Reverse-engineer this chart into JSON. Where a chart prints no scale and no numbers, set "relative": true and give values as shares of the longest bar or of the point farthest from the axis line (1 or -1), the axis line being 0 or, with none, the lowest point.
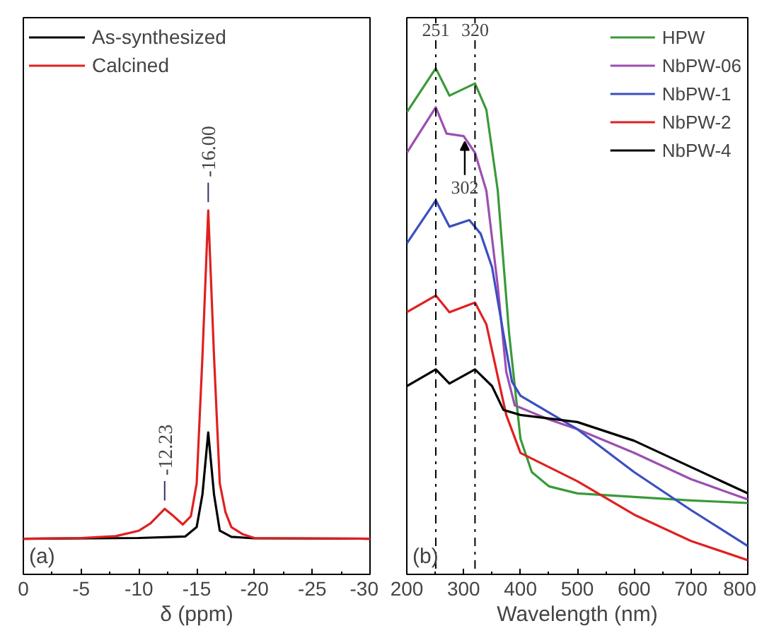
{
  "chart_data": [
    {
      "type": "line",
      "xlabel": "δ (ppm)",
      "xlim": [
        0,
        -30
      ],
      "xticks": [
        0,
        -5,
        -10,
        -15,
        -20,
        -25,
        -30
      ],
      "relative": true,
      "tick_labels": "x",
      "legend": "top left",
      "grid": false,
      "annotations": [
        {
          "text": "-16.00",
          "x": -16.0,
          "y": 1.0
        },
        {
          "text": "-12.23",
          "x": -12.23,
          "y": 0.18
        },
        "(a)"
      ],
      "series": [
        {
          "name": "As-synthesized",
          "color": "#000000",
          "x": [
            0,
            -10,
            -14,
            -15,
            -15.5,
            -16,
            -16.5,
            -17,
            -18,
            -20,
            -30
          ],
          "values": [
            0.098,
            0.1,
            0.104,
            0.13,
            0.22,
            0.39,
            0.22,
            0.12,
            0.103,
            0.099,
            0.098
          ]
        },
        {
          "name": "Calcined",
          "color": "#e02020",
          "x": [
            0,
            -5,
            -8,
            -10,
            -11,
            -12.23,
            -13,
            -13.8,
            -14.5,
            -15,
            -15.5,
            -16,
            -16.5,
            -17,
            -17.5,
            -18,
            -19,
            -20,
            -25,
            -30
          ],
          "values": [
            0.098,
            0.1,
            0.105,
            0.12,
            0.14,
            0.18,
            0.16,
            0.137,
            0.16,
            0.25,
            0.6,
            1.0,
            0.6,
            0.25,
            0.17,
            0.13,
            0.11,
            0.1,
            0.099,
            0.098
          ]
        }
      ]
    },
    {
      "type": "line",
      "xlabel": "Wavelength (nm)",
      "xlim": [
        200,
        800
      ],
      "xticks": [
        200,
        300,
        400,
        500,
        600,
        700,
        800
      ],
      "relative": true,
      "tick_labels": "x",
      "legend": "top right",
      "grid": false,
      "ref_lines": [
        {
          "axis": "x",
          "value": 251,
          "label": "251",
          "color": "#000000",
          "line_style": "dashdot"
        },
        {
          "axis": "x",
          "value": 320,
          "label": "320",
          "color": "#000000",
          "line_style": "dashdot"
        }
      ],
      "annotations": [
        {
          "text": "302",
          "x": 302,
          "y": 0.866
        },
        "(b)"
      ],
      "series": [
        {
          "name": "HPW",
          "color": "#3a9a3a",
          "x": [
            200,
            251,
            275,
            320,
            340,
            360,
            380,
            400,
            420,
            450,
            500,
            600,
            700,
            800
          ],
          "values": [
            0.913,
            1.0,
            0.946,
            0.97,
            0.918,
            0.759,
            0.476,
            0.268,
            0.202,
            0.174,
            0.16,
            0.153,
            0.146,
            0.141
          ]
        },
        {
          "name": "NbPW-06",
          "color": "#9b4fb0",
          "x": [
            200,
            251,
            270,
            300,
            320,
            340,
            360,
            375,
            390,
            450,
            500,
            600,
            700,
            800
          ],
          "values": [
            0.833,
            0.923,
            0.871,
            0.866,
            0.833,
            0.758,
            0.57,
            0.4,
            0.334,
            0.306,
            0.287,
            0.24,
            0.188,
            0.148
          ]
        },
        {
          "name": "NbPW-1",
          "color": "#3a4fc0",
          "x": [
            200,
            251,
            275,
            310,
            330,
            350,
            370,
            385,
            400,
            450,
            500,
            600,
            700,
            800
          ],
          "values": [
            0.654,
            0.739,
            0.687,
            0.7,
            0.673,
            0.607,
            0.476,
            0.381,
            0.353,
            0.32,
            0.287,
            0.202,
            0.127,
            0.056
          ]
        },
        {
          "name": "NbPW-2",
          "color": "#e02020",
          "x": [
            200,
            251,
            275,
            320,
            340,
            360,
            375,
            400,
            450,
            500,
            600,
            700,
            800
          ],
          "values": [
            0.518,
            0.551,
            0.518,
            0.537,
            0.494,
            0.391,
            0.315,
            0.24,
            0.212,
            0.184,
            0.118,
            0.066,
            0.028
          ]
        },
        {
          "name": "NbPW-4",
          "color": "#000000",
          "x": [
            200,
            251,
            275,
            320,
            350,
            370,
            400,
            500,
            600,
            700,
            800
          ],
          "values": [
            0.372,
            0.405,
            0.377,
            0.405,
            0.372,
            0.325,
            0.315,
            0.301,
            0.264,
            0.212,
            0.16
          ]
        }
      ]
    }
  ]
}
